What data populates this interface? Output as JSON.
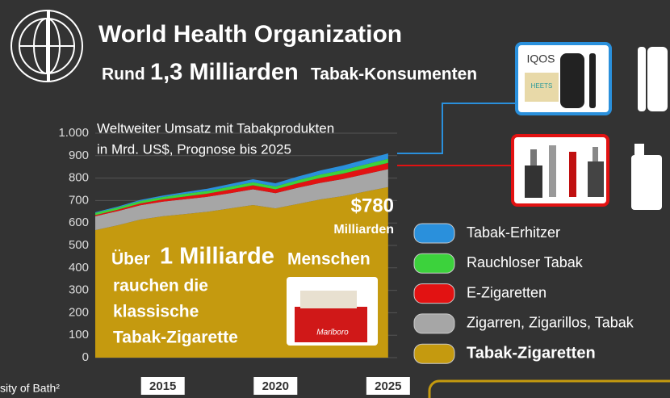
{
  "header": {
    "title": "World Health Organization",
    "subtitle": {
      "pre": "Rund",
      "number": "1,3 Milliarden",
      "post": "Tabak-Konsumenten"
    }
  },
  "chart_data": {
    "type": "area",
    "stacked": true,
    "title": "Weltweiter Umsatz mit Tabakprodukten",
    "subtitle": "in Mrd. US$, Prognose bis 2025",
    "x": [
      2012,
      2013,
      2014,
      2015,
      2016,
      2017,
      2018,
      2019,
      2020,
      2021,
      2022,
      2023,
      2024,
      2025
    ],
    "xlim": [
      2012,
      2025.4
    ],
    "xticks": [
      2015,
      2020,
      2025
    ],
    "ylim": [
      0,
      1000
    ],
    "yticks": [
      0,
      100,
      200,
      300,
      400,
      500,
      600,
      700,
      800,
      900,
      {
        "value": 1000,
        "label": "1.000"
      }
    ],
    "grid": true,
    "series": [
      {
        "name": "Tabak-Erhitzer",
        "color": "#2a90dc",
        "values": [
          3,
          4,
          5,
          6,
          8,
          10,
          12,
          14,
          14,
          16,
          18,
          20,
          22,
          24
        ]
      },
      {
        "name": "Rauchloser Tabak",
        "color": "#3cd23c",
        "values": [
          10,
          10,
          11,
          11,
          12,
          12,
          13,
          13,
          13,
          14,
          15,
          16,
          17,
          18
        ]
      },
      {
        "name": "E-Zigaretten",
        "color": "#e21212",
        "values": [
          5,
          6,
          8,
          10,
          12,
          14,
          16,
          18,
          17,
          20,
          22,
          24,
          26,
          28
        ]
      },
      {
        "name": "Zigarren, Zigarillos, Tabak",
        "color": "#a6a6a6",
        "values": [
          62,
          63,
          64,
          65,
          66,
          67,
          68,
          70,
          68,
          72,
          74,
          76,
          78,
          80
        ]
      },
      {
        "name": "Tabak-Zigaretten",
        "color": "#c59a0f",
        "values": [
          568,
          590,
          615,
          630,
          640,
          650,
          665,
          680,
          665,
          685,
          705,
          720,
          740,
          760
        ]
      }
    ],
    "annotations": {
      "amount": "$780",
      "unit": "Milliarden"
    }
  },
  "callout": {
    "line1": {
      "pre": "Über",
      "big": "1 Milliarde",
      "post": "Menschen"
    },
    "line2": "rauchen die",
    "line3": "klassische",
    "line4": "Tabak-Zigarette"
  },
  "products": {
    "brand": "IQOS",
    "sticks": "HEETS",
    "pack": "Marlboro"
  },
  "source": "sity of Bath²"
}
